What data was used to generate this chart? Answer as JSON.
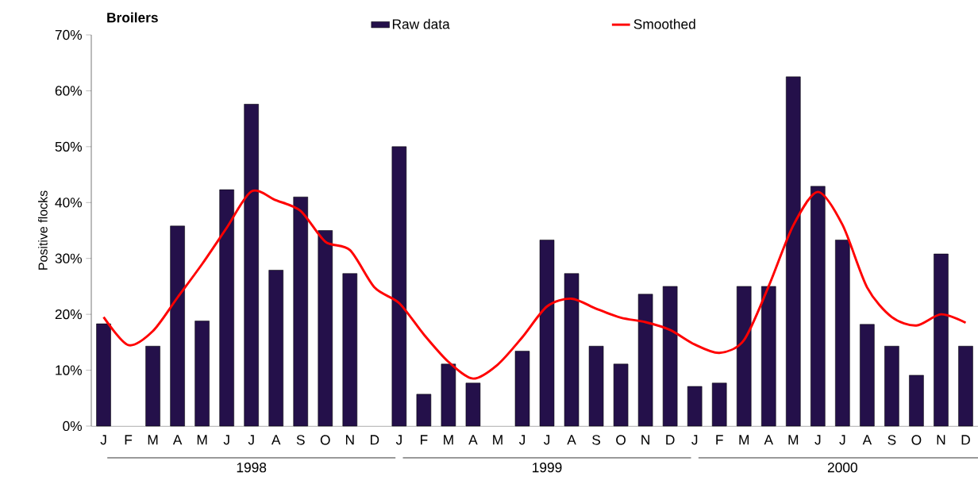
{
  "chart_data": {
    "type": "bar",
    "title": "Broilers",
    "ylabel": "Positive flocks",
    "categories": [
      "J",
      "F",
      "M",
      "A",
      "M",
      "J",
      "J",
      "A",
      "S",
      "O",
      "N",
      "D",
      "J",
      "F",
      "M",
      "A",
      "M",
      "J",
      "J",
      "A",
      "S",
      "O",
      "N",
      "D",
      "J",
      "F",
      "M",
      "A",
      "M",
      "J",
      "J",
      "A",
      "S",
      "O",
      "N",
      "D"
    ],
    "annotations": [
      "1998",
      "1999",
      "2000"
    ],
    "ylim": [
      0,
      70
    ],
    "yticks": [
      {
        "value": 0,
        "label": "0%"
      },
      {
        "value": 10,
        "label": "10%"
      },
      {
        "value": 20,
        "label": "20%"
      },
      {
        "value": 30,
        "label": "30%"
      },
      {
        "value": 40,
        "label": "40%"
      },
      {
        "value": 50,
        "label": "50%"
      },
      {
        "value": 60,
        "label": "60%"
      },
      {
        "value": 70,
        "label": "70%"
      }
    ],
    "legend": "top",
    "series": [
      {
        "name": "Raw data",
        "color": "#24104a",
        "values": [
          18.3,
          null,
          14.3,
          35.8,
          18.8,
          42.3,
          57.6,
          27.9,
          41,
          35,
          27.3,
          null,
          50,
          5.7,
          11.1,
          7.7,
          null,
          13.4,
          33.3,
          27.3,
          14.3,
          11.1,
          23.6,
          25,
          7.1,
          7.7,
          25,
          25,
          62.5,
          42.9,
          33.3,
          18.2,
          14.3,
          9.1,
          30.8,
          14.3
        ]
      },
      {
        "name": "Smoothed",
        "type": "line",
        "color": "#ff0000",
        "values": [
          19.5,
          14.5,
          17,
          23,
          29,
          35.5,
          42,
          40.4,
          38.5,
          33,
          31.5,
          24.8,
          22,
          16.4,
          11.5,
          8.5,
          11,
          15.9,
          21.4,
          22.8,
          21,
          19.4,
          18.6,
          17.2,
          14.6,
          13.1,
          15.4,
          25,
          35.9,
          41.9,
          36,
          24.8,
          19.5,
          18,
          20,
          18.5
        ]
      }
    ]
  }
}
